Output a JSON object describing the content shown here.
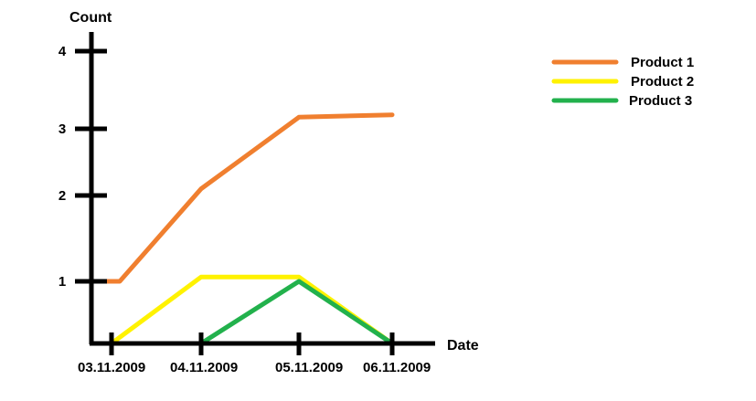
{
  "chart_data": {
    "type": "line",
    "title": "",
    "xlabel": "Date",
    "ylabel": "Count",
    "categories": [
      "03.11.2009",
      "04.11.2009",
      "05.11.2009",
      "06.11.2009"
    ],
    "y_ticks": [
      1,
      2,
      3,
      4
    ],
    "ylim": [
      0,
      4
    ],
    "grid": false,
    "legend_position": "top-right",
    "series": [
      {
        "name": "Product 1",
        "color": "#f07f2f",
        "points": [
          {
            "x": "03.11.2009",
            "y": 1.0
          },
          {
            "x": "04.11.2009",
            "y": 2.1
          },
          {
            "x": "05.11.2009",
            "y": 3.15
          },
          {
            "x": "06.11.2009",
            "y": 3.18
          }
        ]
      },
      {
        "name": "Product 2",
        "color": "#fff200",
        "points": [
          {
            "x": "03.11.2009",
            "y": 0.0
          },
          {
            "x": "04.11.2009",
            "y": 1.05
          },
          {
            "x": "05.11.2009",
            "y": 1.05
          },
          {
            "x": "06.11.2009",
            "y": 0.0
          }
        ]
      },
      {
        "name": "Product 3",
        "color": "#22b14c",
        "points": [
          {
            "x": "04.11.2009",
            "y": 0.0
          },
          {
            "x": "05.11.2009",
            "y": 1.0
          },
          {
            "x": "06.11.2009",
            "y": 0.0
          }
        ]
      }
    ]
  }
}
